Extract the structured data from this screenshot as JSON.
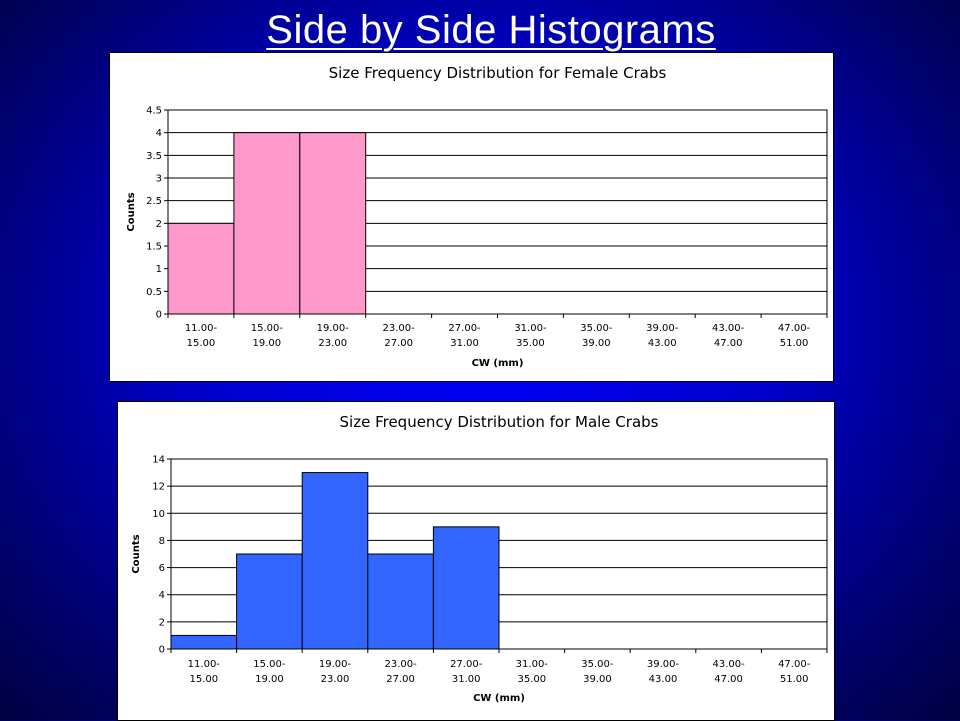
{
  "slide": {
    "title": "Side by Side Histograms"
  },
  "chart_data": [
    {
      "type": "bar",
      "title": "Size Frequency Distribution for Female Crabs",
      "xlabel": "CW (mm)",
      "ylabel": "Counts",
      "categories": [
        "11.00-15.00",
        "15.00-19.00",
        "19.00-23.00",
        "23.00-27.00",
        "27.00-31.00",
        "31.00-35.00",
        "35.00-39.00",
        "39.00-43.00",
        "43.00-47.00",
        "47.00-51.00"
      ],
      "category_lines": [
        [
          "11.00-",
          "15.00"
        ],
        [
          "15.00-",
          "19.00"
        ],
        [
          "19.00-",
          "23.00"
        ],
        [
          "23.00-",
          "27.00"
        ],
        [
          "27.00-",
          "31.00"
        ],
        [
          "31.00-",
          "35.00"
        ],
        [
          "35.00-",
          "39.00"
        ],
        [
          "39.00-",
          "43.00"
        ],
        [
          "43.00-",
          "47.00"
        ],
        [
          "47.00-",
          "51.00"
        ]
      ],
      "values": [
        2,
        4,
        4,
        0,
        0,
        0,
        0,
        0,
        0,
        0
      ],
      "ylim": [
        0,
        4.5
      ],
      "yticks": [
        "0",
        "0.5",
        "1",
        "1.5",
        "2",
        "2.5",
        "3",
        "3.5",
        "4",
        "4.5"
      ],
      "grid": true,
      "bar_color": "#ff99cc"
    },
    {
      "type": "bar",
      "title": "Size Frequency Distribution for Male Crabs",
      "xlabel": "CW (mm)",
      "ylabel": "Counts",
      "categories": [
        "11.00-15.00",
        "15.00-19.00",
        "19.00-23.00",
        "23.00-27.00",
        "27.00-31.00",
        "31.00-35.00",
        "35.00-39.00",
        "39.00-43.00",
        "43.00-47.00",
        "47.00-51.00"
      ],
      "category_lines": [
        [
          "11.00-",
          "15.00"
        ],
        [
          "15.00-",
          "19.00"
        ],
        [
          "19.00-",
          "23.00"
        ],
        [
          "23.00-",
          "27.00"
        ],
        [
          "27.00-",
          "31.00"
        ],
        [
          "31.00-",
          "35.00"
        ],
        [
          "35.00-",
          "39.00"
        ],
        [
          "39.00-",
          "43.00"
        ],
        [
          "43.00-",
          "47.00"
        ],
        [
          "47.00-",
          "51.00"
        ]
      ],
      "values": [
        1,
        7,
        13,
        7,
        9,
        0,
        0,
        0,
        0,
        0
      ],
      "ylim": [
        0,
        14
      ],
      "yticks": [
        "0",
        "2",
        "4",
        "6",
        "8",
        "10",
        "12",
        "14"
      ],
      "grid": true,
      "bar_color": "#3366ff"
    }
  ]
}
